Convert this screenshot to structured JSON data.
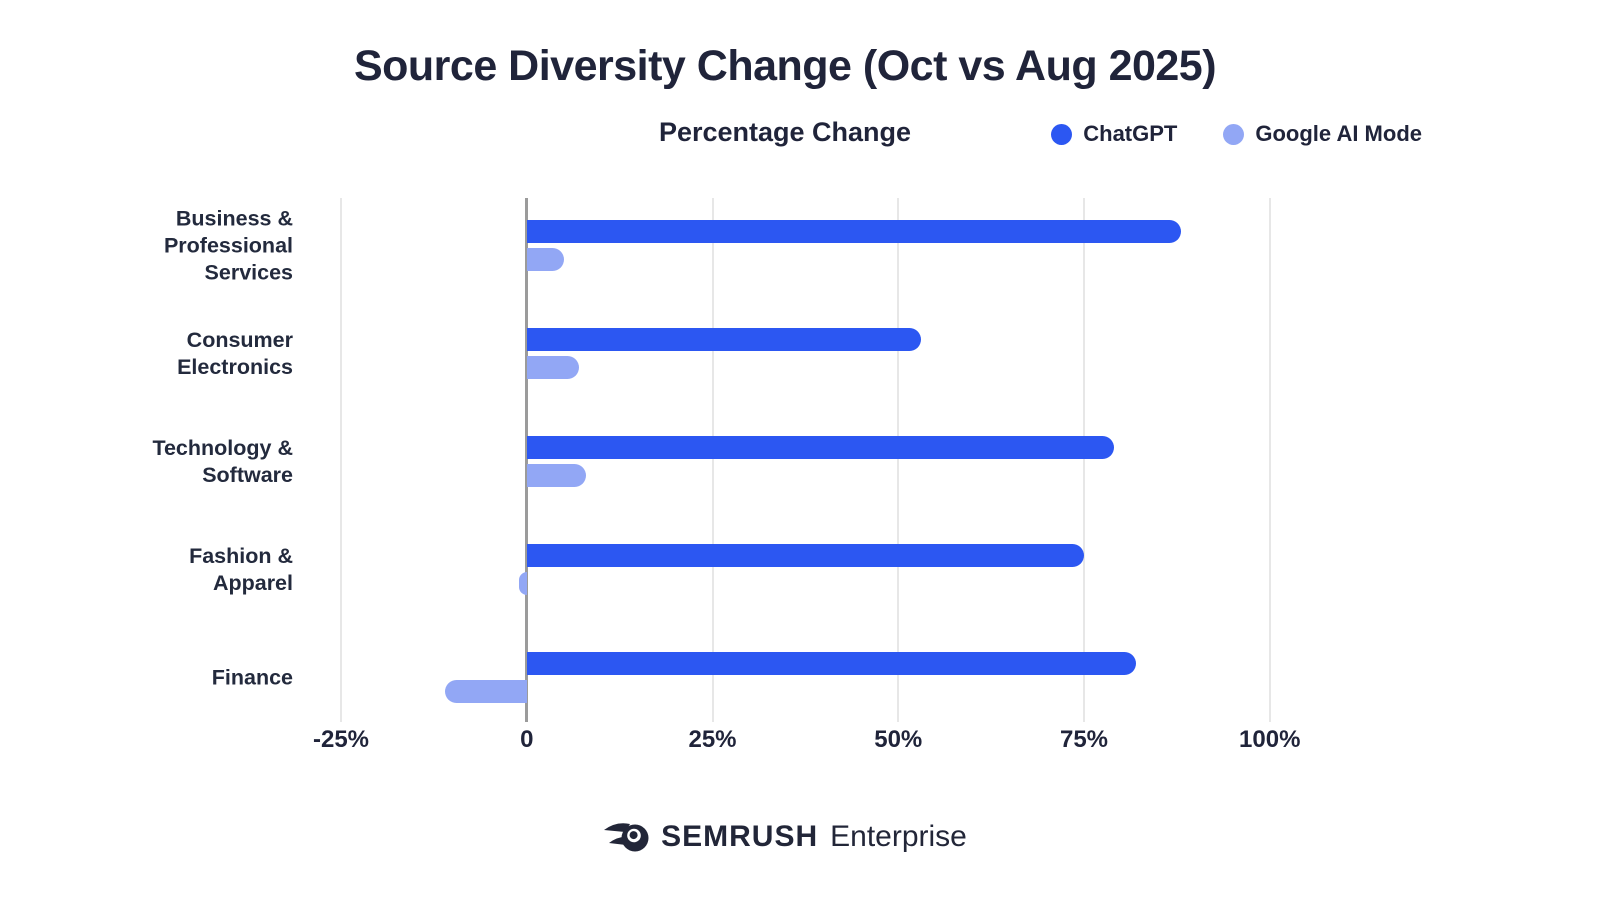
{
  "title": "Source Diversity Change (Oct vs Aug 2025)",
  "subtitle": "Percentage Change",
  "legend": [
    {
      "label": "ChatGPT",
      "color": "#2c57f2"
    },
    {
      "label": "Google AI Mode",
      "color": "#92a7f5"
    }
  ],
  "footer": {
    "brand": "SEMRUSH",
    "suffix": "Enterprise"
  },
  "colors": {
    "chatgpt": "#2c57f2",
    "google_ai_mode": "#92a7f5",
    "text": "#20243a",
    "gridline": "#e7e7e7",
    "zero_axis": "#9b9b9b"
  },
  "chart_data": {
    "type": "bar",
    "orientation": "horizontal",
    "title": "Source Diversity Change (Oct vs Aug 2025)",
    "subtitle": "Percentage Change",
    "unit": "%",
    "categories": [
      "Business & Professional Services",
      "Consumer Electronics",
      "Technology & Software",
      "Fashion & Apparel",
      "Finance"
    ],
    "category_lines": [
      [
        "Business &",
        "Professional",
        "Services"
      ],
      [
        "Consumer",
        "Electronics"
      ],
      [
        "Technology &",
        "Software"
      ],
      [
        "Fashion  &",
        "Apparel"
      ],
      [
        "Finance"
      ]
    ],
    "series": [
      {
        "name": "ChatGPT",
        "color": "#2c57f2",
        "values": [
          88,
          53,
          79,
          75,
          82
        ]
      },
      {
        "name": "Google AI Mode",
        "color": "#92a7f5",
        "values": [
          5,
          7,
          8,
          -1,
          -11
        ]
      }
    ],
    "x_ticks": [
      -25,
      0,
      25,
      50,
      75,
      100
    ],
    "x_tick_labels": [
      "-25%",
      "0",
      "25%",
      "50%",
      "75%",
      "100%"
    ],
    "xlim": [
      -25,
      110
    ],
    "grid": "vertical",
    "legend_position": "top-right"
  }
}
